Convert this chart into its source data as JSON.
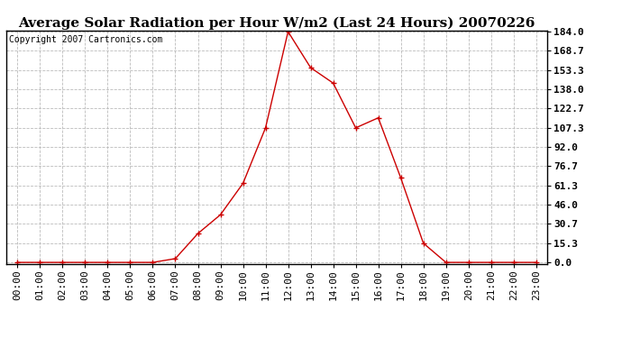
{
  "title": "Average Solar Radiation per Hour W/m2 (Last 24 Hours) 20070226",
  "copyright": "Copyright 2007 Cartronics.com",
  "hours": [
    "00:00",
    "01:00",
    "02:00",
    "03:00",
    "04:00",
    "05:00",
    "06:00",
    "07:00",
    "08:00",
    "09:00",
    "10:00",
    "11:00",
    "12:00",
    "13:00",
    "14:00",
    "15:00",
    "16:00",
    "17:00",
    "18:00",
    "19:00",
    "20:00",
    "21:00",
    "22:00",
    "23:00"
  ],
  "values": [
    0.0,
    0.0,
    0.0,
    0.0,
    0.0,
    0.0,
    0.0,
    3.0,
    23.0,
    38.0,
    63.0,
    107.3,
    184.0,
    155.3,
    143.0,
    107.3,
    115.3,
    67.3,
    15.3,
    0.0,
    0.0,
    0.0,
    0.0,
    0.0
  ],
  "y_ticks": [
    0.0,
    15.3,
    30.7,
    46.0,
    61.3,
    76.7,
    92.0,
    107.3,
    122.7,
    138.0,
    153.3,
    168.7,
    184.0
  ],
  "line_color": "#cc0000",
  "marker_color": "#cc0000",
  "bg_color": "#ffffff",
  "plot_bg_color": "#ffffff",
  "grid_color": "#bbbbbb",
  "title_fontsize": 11,
  "copyright_fontsize": 7,
  "tick_fontsize": 8,
  "ylim": [
    0.0,
    184.0
  ]
}
